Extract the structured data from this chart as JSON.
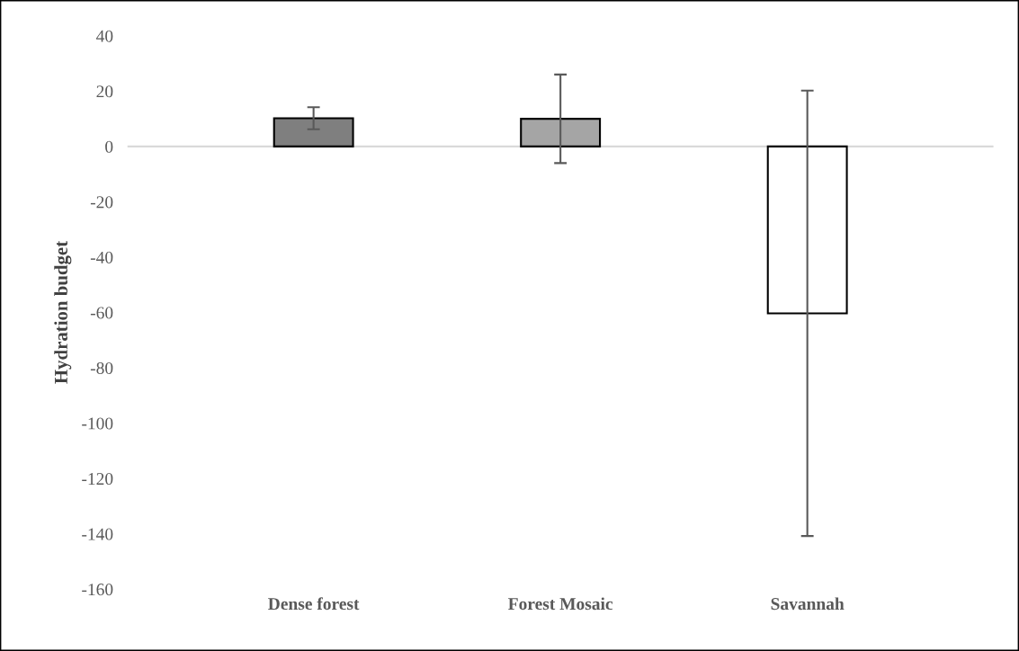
{
  "chart_data": {
    "type": "bar",
    "ylabel": "Hydration budget",
    "categories": [
      "Dense forest",
      "Forest Mosaic",
      "Savannah"
    ],
    "values": [
      10.2,
      10,
      -60.3
    ],
    "colors": [
      "#7f7f7f",
      "#a5a5a5",
      "#ffffff"
    ],
    "errors": [
      4,
      16,
      80.5
    ],
    "ylim": [
      -160,
      40
    ],
    "yticks": [
      -160,
      -140,
      -120,
      -100,
      -80,
      -60,
      -40,
      -20,
      0,
      20,
      40
    ],
    "grid": false,
    "legend": false
  }
}
